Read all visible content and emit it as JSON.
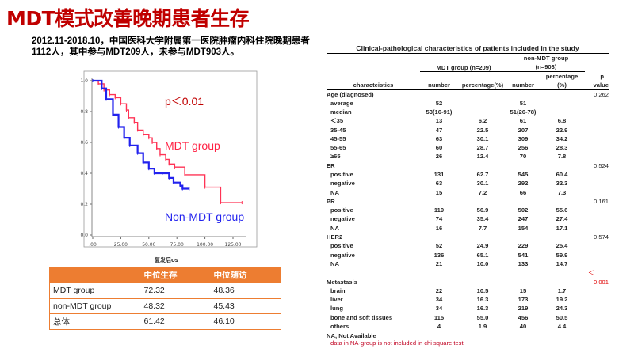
{
  "title": "MDT模式改善晚期患者生存",
  "subtitle": "2012.11-2018.10，中国医科大学附属第一医院肿瘤内科住院晚期患者1112人，其中参与MDT209人，未参与MDT903人。",
  "chart_data": {
    "type": "line",
    "title": "",
    "xlabel": "复发后os",
    "ylabel": "",
    "xlim": [
      0,
      140
    ],
    "ylim": [
      0,
      1.0
    ],
    "x_ticks": [
      ".00",
      "25.00",
      "50.00",
      "75.00",
      "100.00",
      "125.00"
    ],
    "y_ticks": [
      "0.0",
      "0.2",
      "0.4",
      "0.6",
      "0.8",
      "1.0"
    ],
    "annotation": "p＜0.01",
    "colors": {
      "mdt": "#ff3355",
      "non_mdt": "#2222ee"
    },
    "series": [
      {
        "name": "MDT group",
        "x": [
          0,
          5,
          10,
          15,
          20,
          25,
          30,
          32,
          37,
          40,
          45,
          50,
          53,
          57,
          60,
          65,
          68,
          73,
          82,
          100,
          114,
          133
        ],
        "y": [
          1.0,
          0.98,
          0.94,
          0.91,
          0.89,
          0.85,
          0.81,
          0.76,
          0.73,
          0.68,
          0.65,
          0.63,
          0.6,
          0.56,
          0.52,
          0.49,
          0.46,
          0.44,
          0.39,
          0.31,
          0.21,
          0.21
        ]
      },
      {
        "name": "Non-MDT group",
        "x": [
          0,
          8,
          12,
          18,
          23,
          28,
          33,
          40,
          45,
          50,
          55,
          62,
          68,
          72,
          78,
          80,
          86
        ],
        "y": [
          1.0,
          0.95,
          0.88,
          0.78,
          0.7,
          0.63,
          0.58,
          0.53,
          0.47,
          0.43,
          0.4,
          0.4,
          0.37,
          0.34,
          0.32,
          0.3,
          0.3
        ]
      }
    ]
  },
  "survival_table": {
    "headers": [
      "",
      "中位生存",
      "中位随访"
    ],
    "rows": [
      [
        "MDT group",
        "72.32",
        "48.36"
      ],
      [
        "non-MDT group",
        "48.32",
        "45.43"
      ],
      [
        "总体",
        "61.42",
        "46.10"
      ]
    ]
  },
  "clinical": {
    "title": "Clinical-pathological characteristics of  patients included in the study",
    "group1": "MDT group (n=209)",
    "group2a": "non-MDT group",
    "group2b": "(n=903)",
    "h_char": "characteistics",
    "h_num": "number",
    "h_pct": "percentage(%)",
    "h_pct2a": "percentage",
    "h_pct2b": "(%)",
    "h_pa": "p",
    "h_pb": "value",
    "rows": [
      [
        "Age (diagnosed)",
        "",
        "",
        "",
        "",
        "0.262",
        0
      ],
      [
        "average",
        "52",
        "",
        "51",
        "",
        "",
        1
      ],
      [
        "median",
        "53(16-91)",
        "",
        "51(26-78)",
        "",
        "",
        1
      ],
      [
        "＜35",
        "13",
        "6.2",
        "61",
        "6.8",
        "",
        1
      ],
      [
        "35-45",
        "47",
        "22.5",
        "207",
        "22.9",
        "",
        1
      ],
      [
        "45-55",
        "63",
        "30.1",
        "309",
        "34.2",
        "",
        1
      ],
      [
        "55-65",
        "60",
        "28.7",
        "256",
        "28.3",
        "",
        1
      ],
      [
        "≥65",
        "26",
        "12.4",
        "70",
        "7.8",
        "",
        1
      ],
      [
        "ER",
        "",
        "",
        "",
        "",
        "0.524",
        0
      ],
      [
        "positive",
        "131",
        "62.7",
        "545",
        "60.4",
        "",
        1
      ],
      [
        "negative",
        "63",
        "30.1",
        "292",
        "32.3",
        "",
        1
      ],
      [
        "NA",
        "15",
        "7.2",
        "66",
        "7.3",
        "",
        1
      ],
      [
        "PR",
        "",
        "",
        "",
        "",
        "0.161",
        0
      ],
      [
        "positive",
        "119",
        "56.9",
        "502",
        "55.6",
        "",
        1
      ],
      [
        "negative",
        "74",
        "35.4",
        "247",
        "27.4",
        "",
        1
      ],
      [
        "NA",
        "16",
        "7.7",
        "154",
        "17.1",
        "",
        1
      ],
      [
        "HER2",
        "",
        "",
        "",
        "",
        "0.574",
        0
      ],
      [
        "positive",
        "52",
        "24.9",
        "229",
        "25.4",
        "",
        1
      ],
      [
        "negative",
        "136",
        "65.1",
        "541",
        "59.9",
        "",
        1
      ],
      [
        "NA",
        "21",
        "10.0",
        "133",
        "14.7",
        "",
        1
      ],
      [
        "",
        "",
        "",
        "",
        "",
        "＜",
        2
      ],
      [
        "Metastasis",
        "",
        "",
        "",
        "",
        "0.001",
        2
      ],
      [
        "brain",
        "22",
        "10.5",
        "15",
        "1.7",
        "",
        1
      ],
      [
        "liver",
        "34",
        "16.3",
        "173",
        "19.2",
        "",
        1
      ],
      [
        "lung",
        "34",
        "16.3",
        "219",
        "24.3",
        "",
        1
      ],
      [
        "bone and soft tissues",
        "115",
        "55.0",
        "456",
        "50.5",
        "",
        1
      ],
      [
        "others",
        "4",
        "1.9",
        "40",
        "4.4",
        "",
        1
      ]
    ],
    "foot1": "NA, Not Available",
    "foot2": "data in NA-group is not included in chi square test"
  }
}
